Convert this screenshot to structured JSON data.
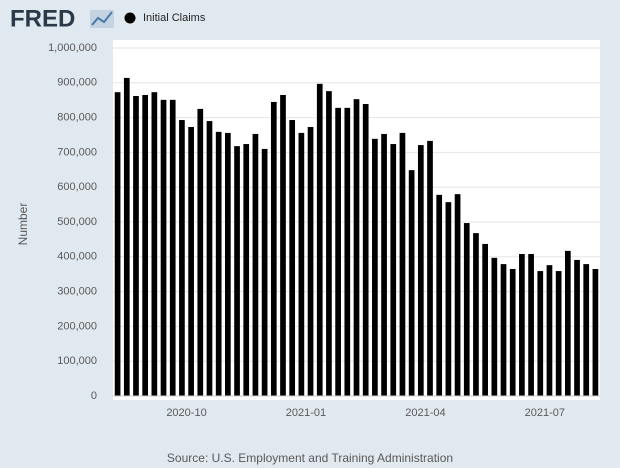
{
  "logo": "FRED",
  "chart_data": {
    "type": "bar",
    "series": [
      {
        "name": "Initial Claims",
        "color": "#000000",
        "values": [
          873000,
          914000,
          862000,
          865000,
          873000,
          851000,
          851000,
          793000,
          773000,
          825000,
          790000,
          759000,
          756000,
          718000,
          724000,
          753000,
          710000,
          845000,
          865000,
          793000,
          756000,
          773000,
          897000,
          876000,
          828000,
          828000,
          853000,
          839000,
          739000,
          753000,
          724000,
          756000,
          649000,
          721000,
          733000,
          578000,
          557000,
          580000,
          497000,
          468000,
          437000,
          397000,
          379000,
          365000,
          408000,
          408000,
          359000,
          376000,
          359000,
          417000,
          391000,
          379000,
          365000
        ]
      }
    ],
    "categories": [
      null,
      null,
      null,
      null,
      null,
      null,
      null,
      null,
      "2020-10",
      null,
      null,
      null,
      null,
      null,
      null,
      null,
      null,
      null,
      null,
      null,
      null,
      "2021-01",
      null,
      null,
      null,
      null,
      null,
      null,
      null,
      null,
      null,
      null,
      null,
      null,
      "2021-04",
      null,
      null,
      null,
      null,
      null,
      null,
      null,
      null,
      null,
      null,
      null,
      null,
      "2021-07",
      null,
      null,
      null,
      null,
      null
    ],
    "ylabel": "Number",
    "ylim": [
      0,
      1000000
    ],
    "yticks": [
      0,
      {
        "value": 100000,
        "label": "100,000"
      },
      {
        "value": 200000,
        "label": "200,000"
      },
      {
        "value": 300000,
        "label": "300,000"
      },
      {
        "value": 400000,
        "label": "400,000"
      },
      {
        "value": 500000,
        "label": "500,000"
      },
      {
        "value": 600000,
        "label": "600,000"
      },
      {
        "value": 700000,
        "label": "700,000"
      },
      {
        "value": 800000,
        "label": "800,000"
      },
      {
        "value": 900000,
        "label": "900,000"
      },
      {
        "value": 1000000,
        "label": "1,000,000"
      }
    ],
    "grid": true,
    "source": "Source: U.S. Employment and Training Administration"
  }
}
